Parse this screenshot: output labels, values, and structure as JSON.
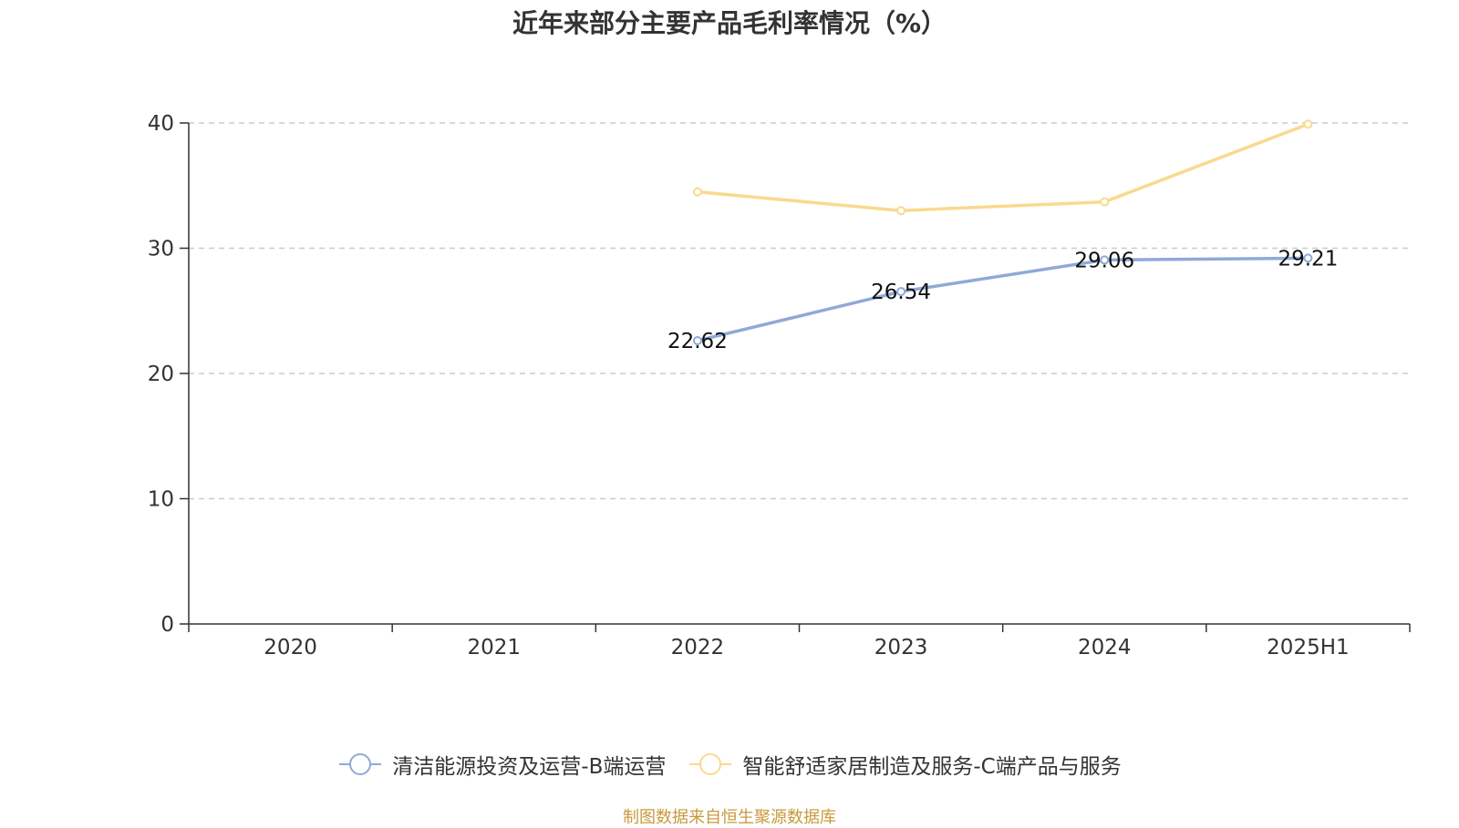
{
  "chart_data": {
    "type": "line",
    "title": "近年来部分主要产品毛利率情况（%）",
    "categories": [
      "2020",
      "2021",
      "2022",
      "2023",
      "2024",
      "2025H1"
    ],
    "ylim": [
      0,
      40
    ],
    "yticks": [
      0,
      10,
      20,
      30,
      40
    ],
    "grid": true,
    "legend_position": "bottom",
    "series": [
      {
        "name": "清洁能源投资及运营-B端运营",
        "color": "#8eaad6",
        "values": [
          null,
          null,
          22.62,
          26.54,
          29.06,
          29.21
        ],
        "labels": [
          "",
          "",
          "22.62",
          "26.54",
          "29.06",
          "29.21"
        ]
      },
      {
        "name": "智能舒适家居制造及服务-C端产品与服务",
        "color": "#fad98e",
        "values": [
          null,
          null,
          34.5,
          33.0,
          33.7,
          39.9
        ],
        "labels": [
          "",
          "",
          "",
          "",
          "",
          ""
        ]
      }
    ]
  },
  "source": "制图数据来自恒生聚源数据库"
}
